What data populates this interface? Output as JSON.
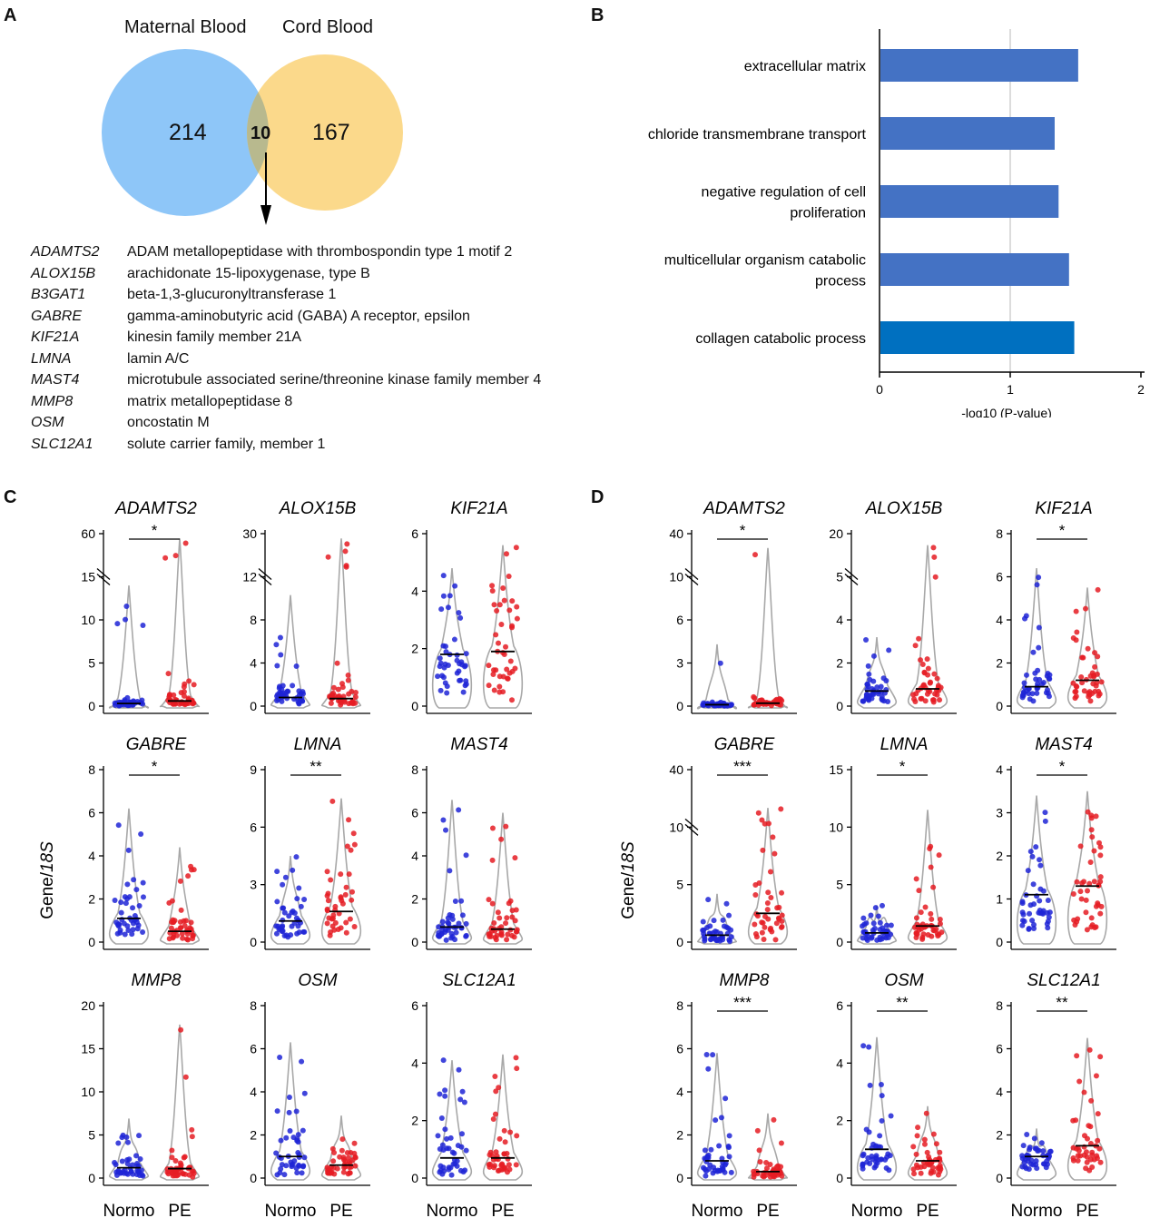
{
  "panels": {
    "A": "A",
    "B": "B",
    "C": "C",
    "D": "D"
  },
  "venn": {
    "left_label": "Maternal Blood",
    "right_label": "Cord Blood",
    "left_count": "214",
    "overlap_count": "10",
    "right_count": "167",
    "left_color": "#8ec6f8",
    "right_color": "#fbd98b",
    "overlap_color": "#b8b98e"
  },
  "gene_table": [
    {
      "symbol": "ADAMTS2",
      "description": "ADAM metallopeptidase with thrombospondin type 1 motif 2"
    },
    {
      "symbol": "ALOX15B",
      "description": "arachidonate 15-lipoxygenase, type B"
    },
    {
      "symbol": "B3GAT1",
      "description": "beta-1,3-glucuronyltransferase 1"
    },
    {
      "symbol": "GABRE",
      "description": "gamma-aminobutyric acid (GABA) A receptor, epsilon"
    },
    {
      "symbol": "KIF21A",
      "description": "kinesin family member 21A"
    },
    {
      "symbol": "LMNA",
      "description": "lamin A/C"
    },
    {
      "symbol": "MAST4",
      "description": "microtubule associated serine/threonine kinase family member 4"
    },
    {
      "symbol": "MMP8",
      "description": "matrix metallopeptidase 8"
    },
    {
      "symbol": "OSM",
      "description": "oncostatin M"
    },
    {
      "symbol": "SLC12A1",
      "description": "solute carrier family, member 1"
    }
  ],
  "chart_data": [
    {
      "type": "bar",
      "orientation": "horizontal",
      "panel": "B",
      "categories": [
        "extracellular matrix",
        "chloride transmembrane transport",
        "negative regulation of cell proliferation",
        "multicellular organism catabolic process",
        "collagen catabolic process"
      ],
      "category_lines": [
        [
          "extracellular matrix"
        ],
        [
          "chloride transmembrane transport"
        ],
        [
          "negative regulation of cell",
          "proliferation"
        ],
        [
          "multicellular organism catabolic",
          "process"
        ],
        [
          "collagen catabolic process"
        ]
      ],
      "values": [
        1.52,
        1.34,
        1.37,
        1.45,
        1.49
      ],
      "bar_colors": [
        "#4472c4",
        "#4472c4",
        "#4472c4",
        "#4472c4",
        "#0070c0"
      ],
      "xlabel": "-log10 (P-value)",
      "xlim": [
        0,
        2
      ],
      "xticks": [
        "0",
        "1",
        "2"
      ],
      "reference_line": 1
    },
    {
      "type": "violin",
      "panel": "C",
      "ylabel_prefix": "Gene/",
      "ylabel_italic": "18S",
      "groups": [
        "Normo",
        "PE"
      ],
      "group_colors": [
        "#1f25d6",
        "#e51c23"
      ],
      "genes": [
        {
          "name": "ADAMTS2",
          "yticks": [
            "0",
            "5",
            "10",
            "15",
            "60"
          ],
          "break": true,
          "sig": "*",
          "normo_median": 0.3,
          "pe_median": 0.6,
          "normo_max": 14,
          "pe_max": 55
        },
        {
          "name": "ALOX15B",
          "yticks": [
            "0",
            "4",
            "8",
            "12",
            "30"
          ],
          "break": true,
          "sig": "",
          "normo_median": 0.8,
          "pe_median": 0.7,
          "normo_max": 10.3,
          "pe_max": 28
        },
        {
          "name": "KIF21A",
          "yticks": [
            "0",
            "2",
            "4",
            "6"
          ],
          "break": false,
          "sig": "",
          "normo_median": 1.8,
          "pe_median": 1.9,
          "normo_max": 4.8,
          "pe_max": 5.6
        },
        {
          "name": "GABRE",
          "yticks": [
            "0",
            "2",
            "4",
            "6",
            "8"
          ],
          "break": false,
          "sig": "*",
          "normo_median": 1.1,
          "pe_median": 0.5,
          "normo_max": 6.2,
          "pe_max": 4.4
        },
        {
          "name": "LMNA",
          "yticks": [
            "0",
            "3",
            "6",
            "9"
          ],
          "break": false,
          "sig": "**",
          "normo_median": 1.1,
          "pe_median": 1.6,
          "normo_max": 4.5,
          "pe_max": 7.5
        },
        {
          "name": "MAST4",
          "yticks": [
            "0",
            "2",
            "4",
            "6",
            "8"
          ],
          "break": false,
          "sig": "",
          "normo_median": 0.7,
          "pe_median": 0.6,
          "normo_max": 6.6,
          "pe_max": 6.0
        },
        {
          "name": "MMP8",
          "yticks": [
            "0",
            "5",
            "10",
            "15",
            "20"
          ],
          "break": false,
          "sig": "",
          "normo_median": 1.2,
          "pe_median": 1.1,
          "normo_max": 6.9,
          "pe_max": 17.8
        },
        {
          "name": "OSM",
          "yticks": [
            "0",
            "2",
            "4",
            "6",
            "8"
          ],
          "break": false,
          "sig": "",
          "normo_median": 1.0,
          "pe_median": 0.6,
          "normo_max": 6.3,
          "pe_max": 2.9
        },
        {
          "name": "SLC12A1",
          "yticks": [
            "0",
            "2",
            "4",
            "6"
          ],
          "break": false,
          "sig": "",
          "normo_median": 0.7,
          "pe_median": 0.7,
          "normo_max": 4.1,
          "pe_max": 4.3
        }
      ]
    },
    {
      "type": "violin",
      "panel": "D",
      "ylabel_prefix": "Gene/",
      "ylabel_italic": "18S",
      "groups": [
        "Normo",
        "PE"
      ],
      "group_colors": [
        "#1f25d6",
        "#e51c23"
      ],
      "genes": [
        {
          "name": "ADAMTS2",
          "yticks": [
            "0",
            "3",
            "6",
            "10",
            "40"
          ],
          "break": true,
          "sig": "*",
          "normo_median": 0.1,
          "pe_median": 0.2,
          "normo_max": 4.3,
          "pe_max": 30
        },
        {
          "name": "ALOX15B",
          "yticks": [
            "0",
            "2",
            "4",
            "5",
            "20"
          ],
          "break": true,
          "sig": "",
          "normo_median": 0.7,
          "pe_median": 0.8,
          "normo_max": 3.2,
          "pe_max": 16
        },
        {
          "name": "KIF21A",
          "yticks": [
            "0",
            "2",
            "4",
            "6",
            "8"
          ],
          "break": false,
          "sig": "*",
          "normo_median": 0.9,
          "pe_median": 1.2,
          "normo_max": 6.4,
          "pe_max": 5.5
        },
        {
          "name": "GABRE",
          "yticks": [
            "0",
            "5",
            "10",
            "40"
          ],
          "break": true,
          "sig": "***",
          "normo_median": 0.6,
          "pe_median": 2.5,
          "normo_max": 4.2,
          "pe_max": 20
        },
        {
          "name": "LMNA",
          "yticks": [
            "0",
            "5",
            "10",
            "15"
          ],
          "break": false,
          "sig": "*",
          "normo_median": 0.8,
          "pe_median": 1.4,
          "normo_max": 3.2,
          "pe_max": 11.5
        },
        {
          "name": "MAST4",
          "yticks": [
            "0",
            "1",
            "2",
            "3",
            "4"
          ],
          "break": false,
          "sig": "*",
          "normo_median": 1.1,
          "pe_median": 1.3,
          "normo_max": 3.4,
          "pe_max": 3.5
        },
        {
          "name": "MMP8",
          "yticks": [
            "0",
            "2",
            "4",
            "6",
            "8"
          ],
          "break": false,
          "sig": "***",
          "normo_median": 0.8,
          "pe_median": 0.3,
          "normo_max": 5.8,
          "pe_max": 3.0
        },
        {
          "name": "OSM",
          "yticks": [
            "0",
            "2",
            "4",
            "6"
          ],
          "break": false,
          "sig": "**",
          "normo_median": 1.0,
          "pe_median": 0.6,
          "normo_max": 4.9,
          "pe_max": 2.5
        },
        {
          "name": "SLC12A1",
          "yticks": [
            "0",
            "2",
            "4",
            "6",
            "8"
          ],
          "break": false,
          "sig": "**",
          "normo_median": 1.0,
          "pe_median": 1.5,
          "normo_max": 2.3,
          "pe_max": 6.5
        }
      ]
    }
  ]
}
